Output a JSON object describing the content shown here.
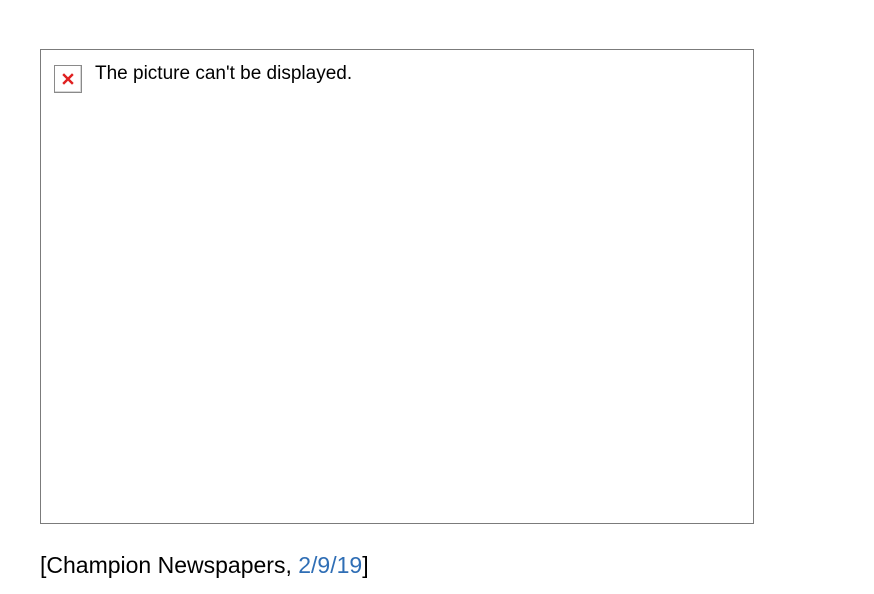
{
  "image": {
    "alt_text": "The picture can't be displayed.",
    "icon": "broken-image-icon"
  },
  "caption": {
    "open_bracket": "[",
    "source": "Champion Newspapers, ",
    "date_link": "2/9/19",
    "close_bracket": "]"
  },
  "colors": {
    "link": "#2f6eb5",
    "frame_border": "#7b7b7b",
    "icon_x": "#e02020"
  }
}
